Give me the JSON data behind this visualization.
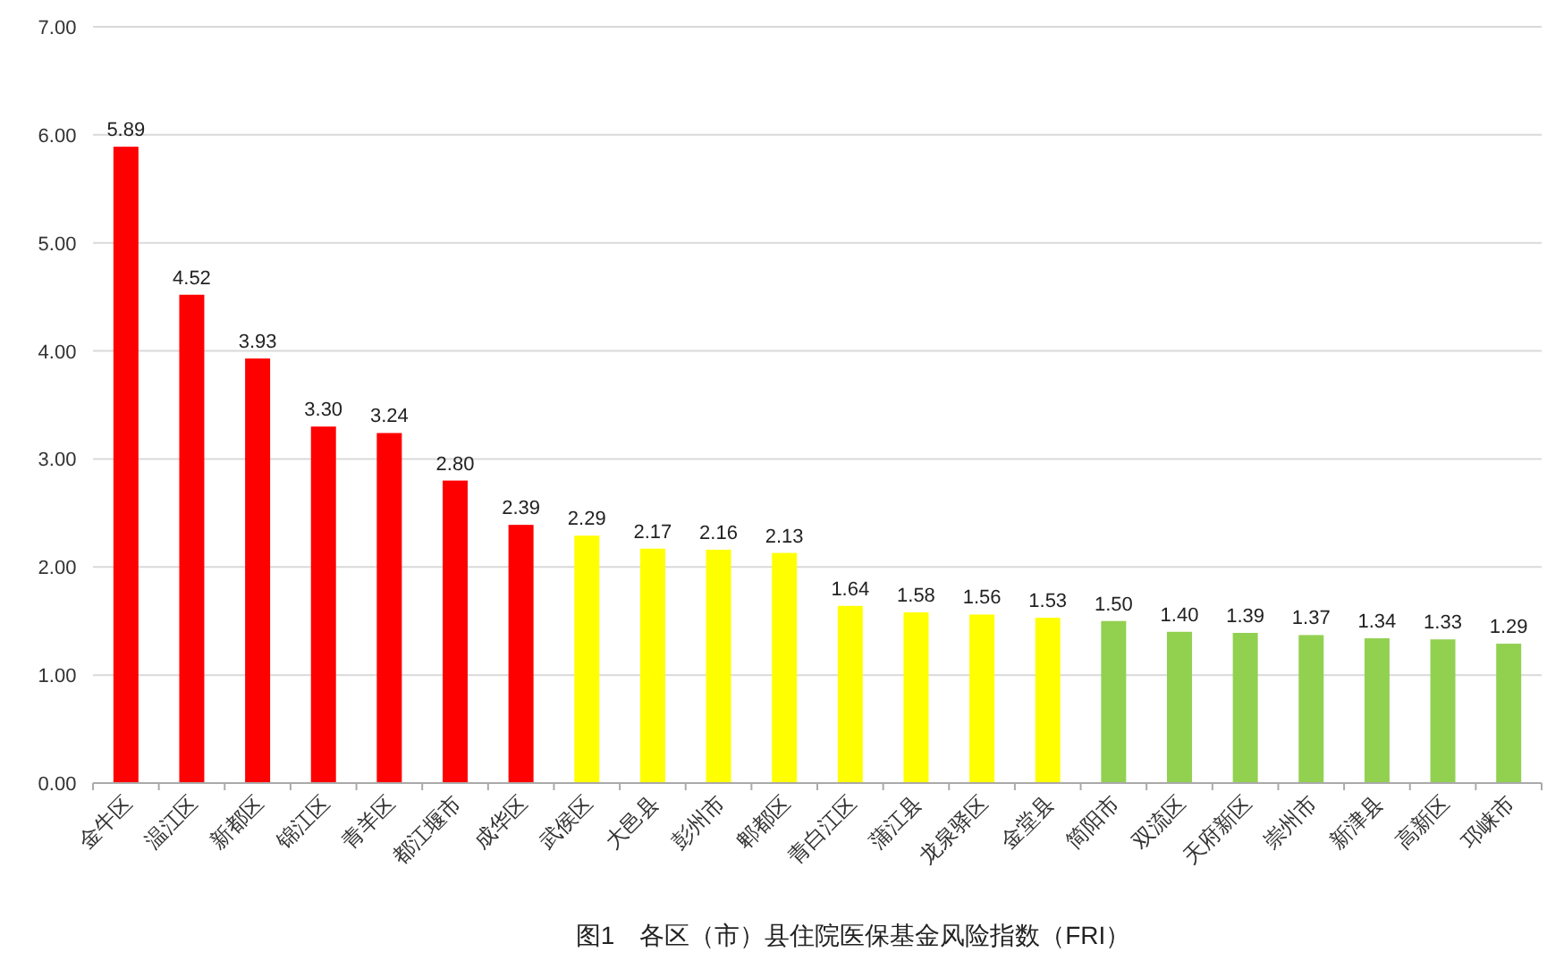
{
  "chart_data": {
    "type": "bar",
    "title": "图1　各区（市）县住院医保基金风险指数（FRI）",
    "categories": [
      "金牛区",
      "温江区",
      "新都区",
      "锦江区",
      "青羊区",
      "都江堰市",
      "成华区",
      "武侯区",
      "大邑县",
      "彭州市",
      "郫都区",
      "青白江区",
      "蒲江县",
      "龙泉驿区",
      "金堂县",
      "简阳市",
      "双流区",
      "天府新区",
      "崇州市",
      "新津县",
      "高新区",
      "邛崃市"
    ],
    "values": [
      5.89,
      4.52,
      3.93,
      3.3,
      3.24,
      2.8,
      2.39,
      2.29,
      2.17,
      2.16,
      2.13,
      1.64,
      1.58,
      1.56,
      1.53,
      1.5,
      1.4,
      1.39,
      1.37,
      1.34,
      1.33,
      1.29
    ],
    "value_labels": [
      "5.89",
      "4.52",
      "3.93",
      "3.30",
      "3.24",
      "2.80",
      "2.39",
      "2.29",
      "2.17",
      "2.16",
      "2.13",
      "1.64",
      "1.58",
      "1.56",
      "1.53",
      "1.50",
      "1.40",
      "1.39",
      "1.37",
      "1.34",
      "1.33",
      "1.29"
    ],
    "colors": [
      "#ff0000",
      "#ff0000",
      "#ff0000",
      "#ff0000",
      "#ff0000",
      "#ff0000",
      "#ff0000",
      "#ffff00",
      "#ffff00",
      "#ffff00",
      "#ffff00",
      "#ffff00",
      "#ffff00",
      "#ffff00",
      "#ffff00",
      "#92d050",
      "#92d050",
      "#92d050",
      "#92d050",
      "#92d050",
      "#92d050",
      "#92d050"
    ],
    "ylim": [
      0,
      7
    ],
    "yticks": [
      {
        "value": 0,
        "label": "0.00"
      },
      {
        "value": 1,
        "label": "1.00"
      },
      {
        "value": 2,
        "label": "2.00"
      },
      {
        "value": 3,
        "label": "3.00"
      },
      {
        "value": 4,
        "label": "4.00"
      },
      {
        "value": 5,
        "label": "5.00"
      },
      {
        "value": 6,
        "label": "6.00"
      },
      {
        "value": 7,
        "label": "7.00"
      }
    ],
    "grid": "y"
  }
}
